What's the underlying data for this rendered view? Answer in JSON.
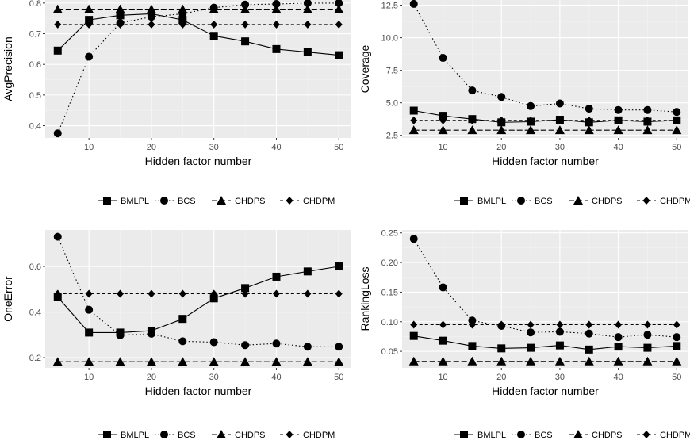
{
  "chart_data": [
    {
      "type": "line",
      "xlabel": "Hidden factor number",
      "ylabel": "AvgPrecision",
      "x": [
        5,
        10,
        15,
        20,
        25,
        30,
        35,
        40,
        45,
        50
      ],
      "xlim": [
        3,
        52
      ],
      "ylim": [
        0.36,
        0.81
      ],
      "xticks": [
        10,
        20,
        30,
        40,
        50
      ],
      "yticks": [
        0.4,
        0.5,
        0.6,
        0.7,
        0.8
      ],
      "ytick_labels": [
        "0.4",
        "0.5",
        "0.6",
        "0.7",
        "0.8"
      ],
      "grid": true,
      "legend_position": "bottom",
      "series": [
        {
          "name": "BMLPL",
          "values": [
            0.645,
            0.745,
            0.76,
            0.765,
            0.745,
            0.693,
            0.675,
            0.65,
            0.64,
            0.63
          ]
        },
        {
          "name": "BCS",
          "values": [
            0.375,
            0.625,
            0.735,
            0.755,
            0.765,
            0.785,
            0.795,
            0.797,
            0.8,
            0.8
          ]
        },
        {
          "name": "CHDPS",
          "values": [
            0.78,
            0.78,
            0.78,
            0.78,
            0.78,
            0.78,
            0.78,
            0.78,
            0.78,
            0.78
          ]
        },
        {
          "name": "CHDPM",
          "values": [
            0.73,
            0.73,
            0.73,
            0.73,
            0.73,
            0.73,
            0.73,
            0.73,
            0.73,
            0.73
          ]
        }
      ]
    },
    {
      "type": "line",
      "xlabel": "Hidden factor number",
      "ylabel": "Coverage",
      "x": [
        5,
        10,
        15,
        20,
        25,
        30,
        35,
        40,
        45,
        50
      ],
      "xlim": [
        3,
        52
      ],
      "ylim": [
        2.3,
        12.9
      ],
      "xticks": [
        10,
        20,
        30,
        40,
        50
      ],
      "yticks": [
        2.5,
        5.0,
        7.5,
        10.0,
        12.5
      ],
      "ytick_labels": [
        "2.5",
        "5.0",
        "7.5",
        "10.0",
        "12.5"
      ],
      "grid": true,
      "legend_position": "bottom",
      "series": [
        {
          "name": "BMLPL",
          "values": [
            4.4,
            4.0,
            3.75,
            3.5,
            3.55,
            3.7,
            3.5,
            3.65,
            3.55,
            3.65
          ]
        },
        {
          "name": "BCS",
          "values": [
            12.6,
            8.45,
            5.95,
            5.45,
            4.75,
            4.95,
            4.55,
            4.45,
            4.45,
            4.3
          ]
        },
        {
          "name": "CHDPS",
          "values": [
            2.9,
            2.9,
            2.9,
            2.9,
            2.9,
            2.9,
            2.9,
            2.9,
            2.9,
            2.9
          ]
        },
        {
          "name": "CHDPM",
          "values": [
            3.65,
            3.65,
            3.65,
            3.65,
            3.65,
            3.65,
            3.65,
            3.65,
            3.65,
            3.65
          ]
        }
      ]
    },
    {
      "type": "line",
      "xlabel": "Hidden factor number",
      "ylabel": "OneError",
      "x": [
        5,
        10,
        15,
        20,
        25,
        30,
        35,
        40,
        45,
        50
      ],
      "xlim": [
        3,
        52
      ],
      "ylim": [
        0.155,
        0.76
      ],
      "xticks": [
        10,
        20,
        30,
        40,
        50
      ],
      "yticks": [
        0.2,
        0.4,
        0.6
      ],
      "ytick_labels": [
        "0.2",
        "0.4",
        "0.6"
      ],
      "grid": true,
      "legend_position": "bottom",
      "series": [
        {
          "name": "BMLPL",
          "values": [
            0.465,
            0.31,
            0.31,
            0.318,
            0.37,
            0.46,
            0.505,
            0.555,
            0.578,
            0.6
          ]
        },
        {
          "name": "BCS",
          "values": [
            0.73,
            0.41,
            0.298,
            0.305,
            0.272,
            0.268,
            0.255,
            0.262,
            0.248,
            0.248
          ]
        },
        {
          "name": "CHDPS",
          "values": [
            0.182,
            0.182,
            0.182,
            0.182,
            0.182,
            0.182,
            0.182,
            0.182,
            0.182,
            0.182
          ]
        },
        {
          "name": "CHDPM",
          "values": [
            0.48,
            0.48,
            0.48,
            0.48,
            0.48,
            0.48,
            0.48,
            0.48,
            0.48,
            0.48
          ]
        }
      ]
    },
    {
      "type": "line",
      "xlabel": "Hidden factor number",
      "ylabel": "RankingLoss",
      "x": [
        5,
        10,
        15,
        20,
        25,
        30,
        35,
        40,
        45,
        50
      ],
      "xlim": [
        3,
        52
      ],
      "ylim": [
        0.022,
        0.255
      ],
      "xticks": [
        10,
        20,
        30,
        40,
        50
      ],
      "yticks": [
        0.05,
        0.1,
        0.15,
        0.2,
        0.25
      ],
      "ytick_labels": [
        "0.05",
        "0.10",
        "0.15",
        "0.20",
        "0.25"
      ],
      "grid": true,
      "legend_position": "bottom",
      "series": [
        {
          "name": "BMLPL",
          "values": [
            0.076,
            0.068,
            0.059,
            0.055,
            0.056,
            0.06,
            0.053,
            0.058,
            0.056,
            0.059
          ]
        },
        {
          "name": "BCS",
          "values": [
            0.24,
            0.158,
            0.102,
            0.093,
            0.082,
            0.083,
            0.08,
            0.074,
            0.078,
            0.074
          ]
        },
        {
          "name": "CHDPS",
          "values": [
            0.033,
            0.033,
            0.033,
            0.033,
            0.033,
            0.033,
            0.033,
            0.033,
            0.033,
            0.033
          ]
        },
        {
          "name": "CHDPM",
          "values": [
            0.095,
            0.095,
            0.095,
            0.095,
            0.095,
            0.095,
            0.095,
            0.095,
            0.095,
            0.095
          ]
        }
      ]
    }
  ],
  "series_styles": [
    {
      "name": "BMLPL",
      "shape": "square",
      "line": "solid",
      "color": "#000000"
    },
    {
      "name": "BCS",
      "shape": "circle",
      "line": "dotted",
      "color": "#000000"
    },
    {
      "name": "CHDPS",
      "shape": "triangle",
      "line": "longdash",
      "color": "#000000"
    },
    {
      "name": "CHDPM",
      "shape": "diamond",
      "line": "dashed",
      "color": "#000000"
    }
  ],
  "colors": {
    "panel_background": "#ebebeb",
    "grid_major": "#ffffff",
    "grid_minor": "#f3f3f3",
    "tick_text": "#4d4d4d"
  }
}
